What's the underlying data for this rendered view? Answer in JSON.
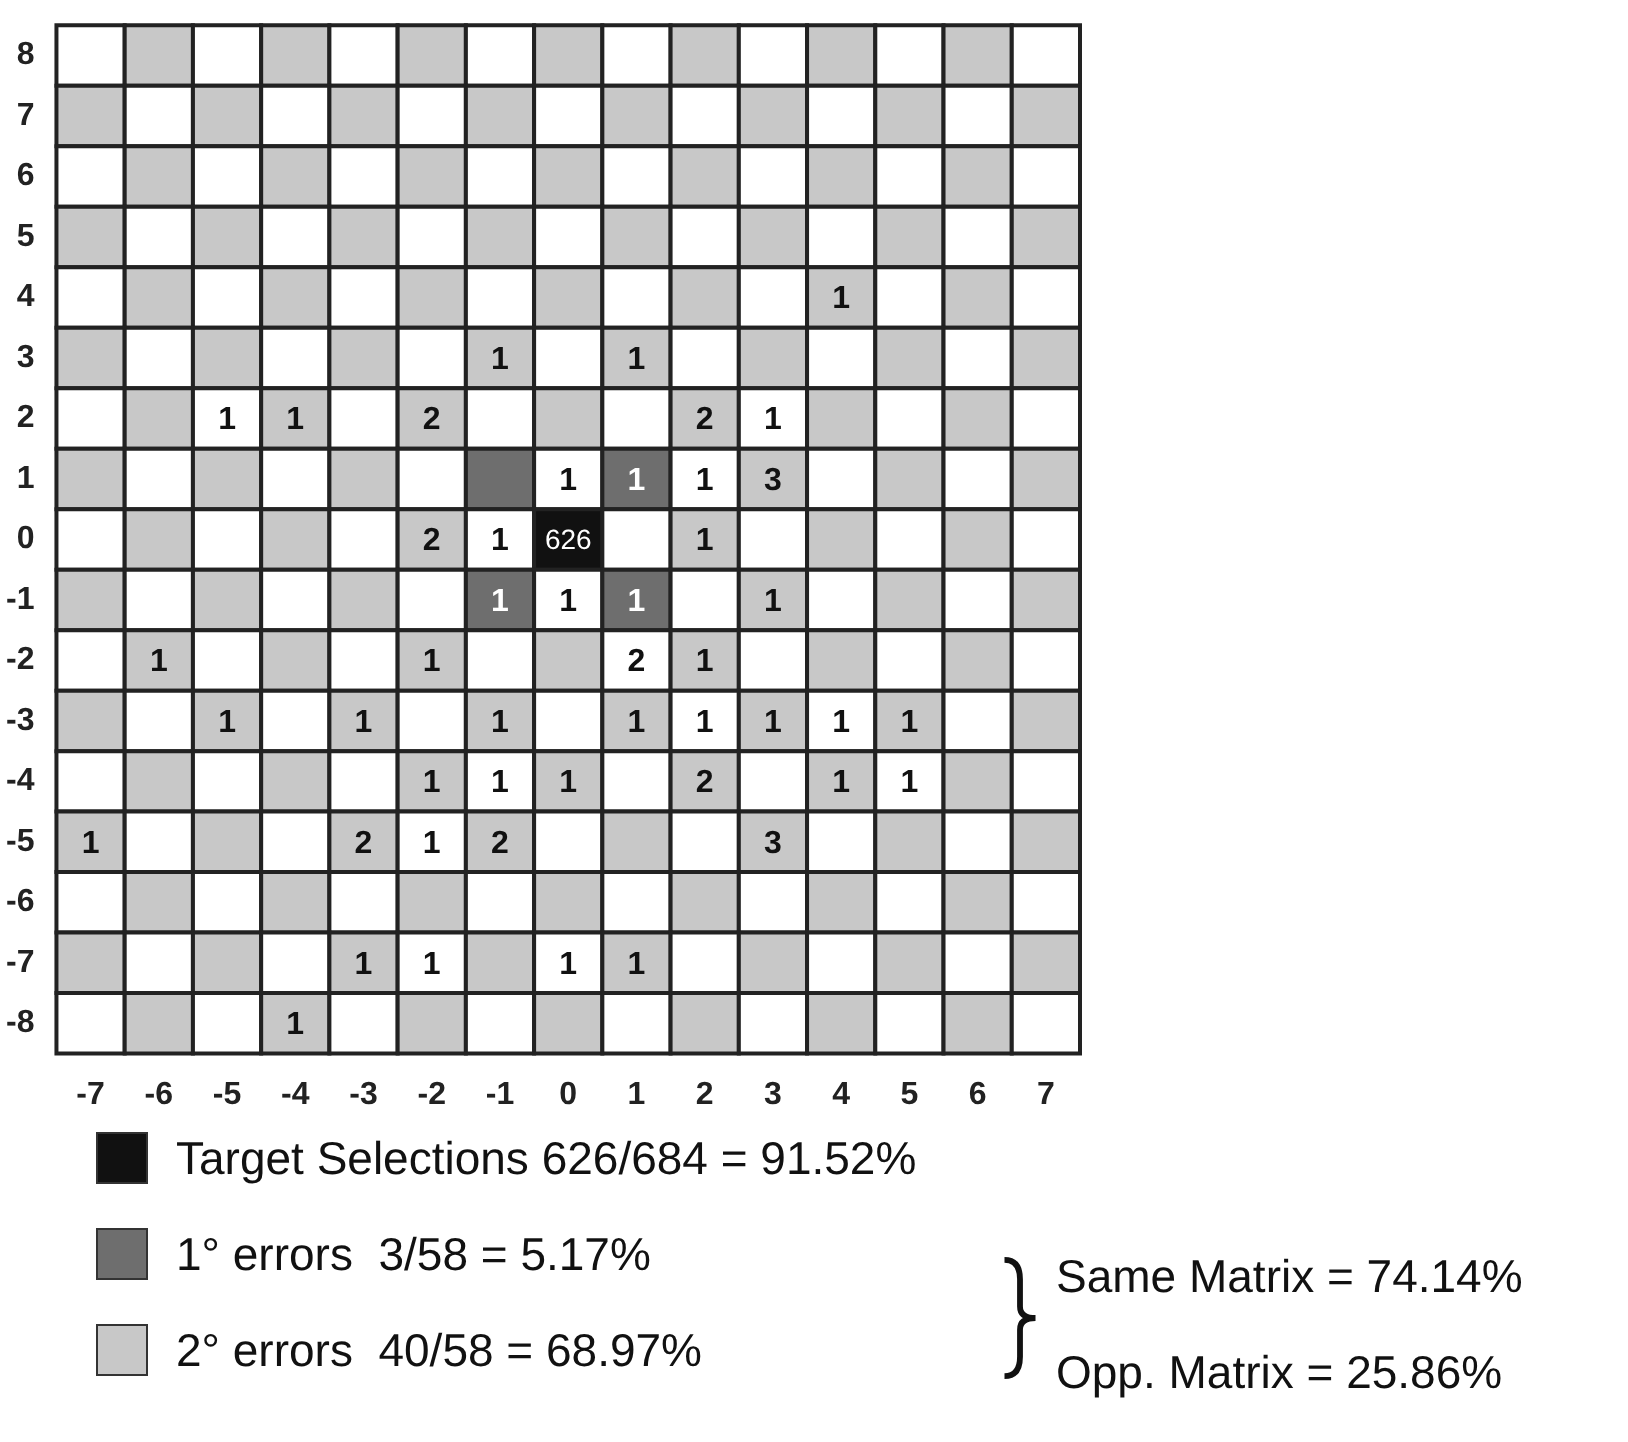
{
  "chart_data": {
    "type": "heatmap",
    "categories": [
      "-7",
      "-6",
      "-5",
      "-4",
      "-3",
      "-2",
      "-1",
      "0",
      "1",
      "2",
      "3",
      "4",
      "5",
      "6",
      "7"
    ],
    "y_categories": [
      "8",
      "7",
      "6",
      "5",
      "4",
      "3",
      "2",
      "1",
      "0",
      "-1",
      "-2",
      "-3",
      "-4",
      "-5",
      "-6",
      "-7",
      "-8"
    ],
    "cells": [
      [
        null,
        null,
        null,
        null,
        null,
        null,
        null,
        null,
        null,
        null,
        null,
        null,
        null,
        null,
        null
      ],
      [
        null,
        null,
        null,
        null,
        null,
        null,
        null,
        null,
        null,
        null,
        null,
        null,
        null,
        null,
        null
      ],
      [
        null,
        null,
        null,
        null,
        null,
        null,
        null,
        null,
        null,
        null,
        null,
        null,
        null,
        null,
        null
      ],
      [
        null,
        null,
        null,
        null,
        null,
        null,
        null,
        null,
        null,
        null,
        null,
        null,
        null,
        null,
        null
      ],
      [
        null,
        null,
        null,
        null,
        null,
        null,
        null,
        null,
        null,
        null,
        null,
        1,
        null,
        null,
        null
      ],
      [
        null,
        null,
        null,
        null,
        null,
        null,
        1,
        null,
        1,
        null,
        null,
        null,
        null,
        null,
        null
      ],
      [
        null,
        null,
        1,
        1,
        null,
        2,
        null,
        null,
        null,
        2,
        1,
        null,
        null,
        null,
        null
      ],
      [
        null,
        null,
        null,
        null,
        null,
        null,
        null,
        1,
        1,
        1,
        3,
        null,
        null,
        null,
        null
      ],
      [
        null,
        null,
        null,
        null,
        null,
        2,
        1,
        626,
        null,
        1,
        null,
        null,
        null,
        null,
        null
      ],
      [
        null,
        null,
        null,
        null,
        null,
        null,
        1,
        1,
        1,
        null,
        1,
        null,
        null,
        null,
        null
      ],
      [
        null,
        1,
        null,
        null,
        null,
        1,
        null,
        null,
        2,
        1,
        null,
        null,
        null,
        null,
        null
      ],
      [
        null,
        null,
        1,
        null,
        1,
        null,
        1,
        null,
        1,
        1,
        1,
        1,
        1,
        null,
        null
      ],
      [
        null,
        null,
        null,
        null,
        null,
        1,
        1,
        1,
        null,
        2,
        null,
        1,
        1,
        null,
        null
      ],
      [
        1,
        null,
        null,
        null,
        2,
        1,
        2,
        null,
        null,
        null,
        3,
        null,
        null,
        null,
        null
      ],
      [
        null,
        null,
        null,
        null,
        null,
        null,
        null,
        null,
        null,
        null,
        null,
        null,
        null,
        null,
        null
      ],
      [
        null,
        null,
        null,
        null,
        1,
        1,
        null,
        1,
        1,
        null,
        null,
        null,
        null,
        null,
        null
      ],
      [
        null,
        null,
        null,
        1,
        null,
        null,
        null,
        null,
        null,
        null,
        null,
        null,
        null,
        null,
        null
      ]
    ],
    "colors": [
      [
        "#ffffff",
        "#c8c8c8",
        "#ffffff",
        "#c8c8c8",
        "#ffffff",
        "#c8c8c8",
        "#ffffff",
        "#c8c8c8",
        "#ffffff",
        "#c8c8c8",
        "#ffffff",
        "#c8c8c8",
        "#ffffff",
        "#c8c8c8",
        "#ffffff"
      ],
      [
        "#c8c8c8",
        "#ffffff",
        "#c8c8c8",
        "#ffffff",
        "#c8c8c8",
        "#ffffff",
        "#c8c8c8",
        "#ffffff",
        "#c8c8c8",
        "#ffffff",
        "#c8c8c8",
        "#ffffff",
        "#c8c8c8",
        "#ffffff",
        "#c8c8c8"
      ],
      [
        "#ffffff",
        "#c8c8c8",
        "#ffffff",
        "#c8c8c8",
        "#ffffff",
        "#c8c8c8",
        "#ffffff",
        "#c8c8c8",
        "#ffffff",
        "#c8c8c8",
        "#ffffff",
        "#c8c8c8",
        "#ffffff",
        "#c8c8c8",
        "#ffffff"
      ],
      [
        "#c8c8c8",
        "#ffffff",
        "#c8c8c8",
        "#ffffff",
        "#c8c8c8",
        "#ffffff",
        "#c8c8c8",
        "#ffffff",
        "#c8c8c8",
        "#ffffff",
        "#c8c8c8",
        "#ffffff",
        "#c8c8c8",
        "#ffffff",
        "#c8c8c8"
      ],
      [
        "#ffffff",
        "#c8c8c8",
        "#ffffff",
        "#c8c8c8",
        "#ffffff",
        "#c8c8c8",
        "#ffffff",
        "#c8c8c8",
        "#ffffff",
        "#c8c8c8",
        "#ffffff",
        "#c8c8c8",
        "#ffffff",
        "#c8c8c8",
        "#ffffff"
      ],
      [
        "#c8c8c8",
        "#ffffff",
        "#c8c8c8",
        "#ffffff",
        "#c8c8c8",
        "#ffffff",
        "#c8c8c8",
        "#ffffff",
        "#c8c8c8",
        "#ffffff",
        "#c8c8c8",
        "#ffffff",
        "#c8c8c8",
        "#ffffff",
        "#c8c8c8"
      ],
      [
        "#ffffff",
        "#c8c8c8",
        "#ffffff",
        "#c8c8c8",
        "#ffffff",
        "#c8c8c8",
        "#ffffff",
        "#c8c8c8",
        "#ffffff",
        "#c8c8c8",
        "#ffffff",
        "#c8c8c8",
        "#ffffff",
        "#c8c8c8",
        "#ffffff"
      ],
      [
        "#c8c8c8",
        "#ffffff",
        "#c8c8c8",
        "#ffffff",
        "#c8c8c8",
        "#ffffff",
        "#6e6e6e",
        "#ffffff",
        "#6e6e6e",
        "#ffffff",
        "#c8c8c8",
        "#ffffff",
        "#c8c8c8",
        "#ffffff",
        "#c8c8c8"
      ],
      [
        "#ffffff",
        "#c8c8c8",
        "#ffffff",
        "#c8c8c8",
        "#ffffff",
        "#c8c8c8",
        "#ffffff",
        "#111111",
        "#ffffff",
        "#c8c8c8",
        "#ffffff",
        "#c8c8c8",
        "#ffffff",
        "#c8c8c8",
        "#ffffff"
      ],
      [
        "#c8c8c8",
        "#ffffff",
        "#c8c8c8",
        "#ffffff",
        "#c8c8c8",
        "#ffffff",
        "#6e6e6e",
        "#ffffff",
        "#6e6e6e",
        "#ffffff",
        "#c8c8c8",
        "#ffffff",
        "#c8c8c8",
        "#ffffff",
        "#c8c8c8"
      ],
      [
        "#ffffff",
        "#c8c8c8",
        "#ffffff",
        "#c8c8c8",
        "#ffffff",
        "#c8c8c8",
        "#ffffff",
        "#c8c8c8",
        "#ffffff",
        "#c8c8c8",
        "#ffffff",
        "#c8c8c8",
        "#ffffff",
        "#c8c8c8",
        "#ffffff"
      ],
      [
        "#c8c8c8",
        "#ffffff",
        "#c8c8c8",
        "#ffffff",
        "#c8c8c8",
        "#ffffff",
        "#c8c8c8",
        "#ffffff",
        "#c8c8c8",
        "#ffffff",
        "#c8c8c8",
        "#ffffff",
        "#c8c8c8",
        "#ffffff",
        "#c8c8c8"
      ],
      [
        "#ffffff",
        "#c8c8c8",
        "#ffffff",
        "#c8c8c8",
        "#ffffff",
        "#c8c8c8",
        "#ffffff",
        "#c8c8c8",
        "#ffffff",
        "#c8c8c8",
        "#ffffff",
        "#c8c8c8",
        "#ffffff",
        "#c8c8c8",
        "#ffffff"
      ],
      [
        "#c8c8c8",
        "#ffffff",
        "#c8c8c8",
        "#ffffff",
        "#c8c8c8",
        "#ffffff",
        "#c8c8c8",
        "#ffffff",
        "#c8c8c8",
        "#ffffff",
        "#c8c8c8",
        "#ffffff",
        "#c8c8c8",
        "#ffffff",
        "#c8c8c8"
      ],
      [
        "#ffffff",
        "#c8c8c8",
        "#ffffff",
        "#c8c8c8",
        "#ffffff",
        "#c8c8c8",
        "#ffffff",
        "#c8c8c8",
        "#ffffff",
        "#c8c8c8",
        "#ffffff",
        "#c8c8c8",
        "#ffffff",
        "#c8c8c8",
        "#ffffff"
      ],
      [
        "#c8c8c8",
        "#ffffff",
        "#c8c8c8",
        "#ffffff",
        "#c8c8c8",
        "#ffffff",
        "#c8c8c8",
        "#ffffff",
        "#c8c8c8",
        "#ffffff",
        "#c8c8c8",
        "#ffffff",
        "#c8c8c8",
        "#ffffff",
        "#c8c8c8"
      ],
      [
        "#ffffff",
        "#c8c8c8",
        "#ffffff",
        "#c8c8c8",
        "#ffffff",
        "#c8c8c8",
        "#ffffff",
        "#c8c8c8",
        "#ffffff",
        "#c8c8c8",
        "#ffffff",
        "#c8c8c8",
        "#ffffff",
        "#c8c8c8",
        "#ffffff"
      ]
    ],
    "data_labels": true,
    "annotations": [
      "Target Selections 626/684 = 91.52%",
      "1° errors  3/58 = 5.17%",
      "2° errors  40/58 = 68.97%",
      "Same Matrix = 74.14%",
      "Opp. Matrix = 25.86%"
    ]
  }
}
